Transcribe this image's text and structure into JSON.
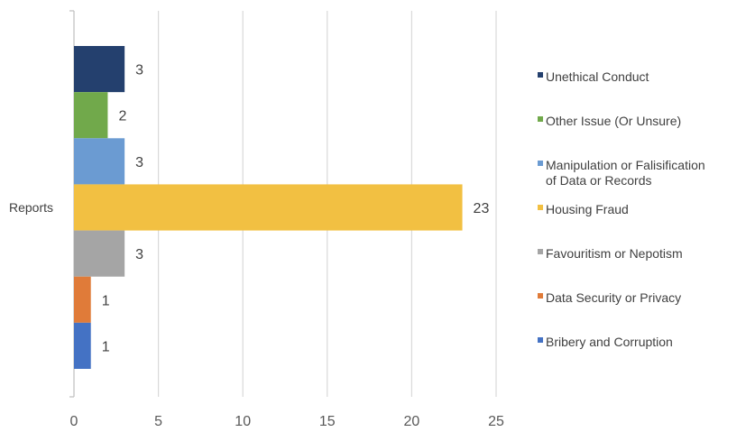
{
  "chart_data": {
    "type": "bar",
    "orientation": "horizontal",
    "category": "Reports",
    "series": [
      {
        "name": "Unethical Conduct",
        "value": 3,
        "color": "#24406e"
      },
      {
        "name": "Other Issue (Or Unsure)",
        "value": 2,
        "color": "#71a94b"
      },
      {
        "name": "Manipulation or Falisification of Data or Records",
        "value": 3,
        "color": "#6b9bd2"
      },
      {
        "name": "Housing Fraud",
        "value": 23,
        "color": "#f2c042"
      },
      {
        "name": "Favouritism or Nepotism",
        "value": 3,
        "color": "#a5a5a5"
      },
      {
        "name": "Data Security or Privacy",
        "value": 1,
        "color": "#e07b39"
      },
      {
        "name": "Bribery and Corruption",
        "value": 1,
        "color": "#4472c4"
      }
    ],
    "xlim": [
      0,
      25
    ],
    "xticks": [
      "0",
      "5",
      "10",
      "15",
      "20",
      "25"
    ],
    "grid": true,
    "legend_position": "right"
  }
}
